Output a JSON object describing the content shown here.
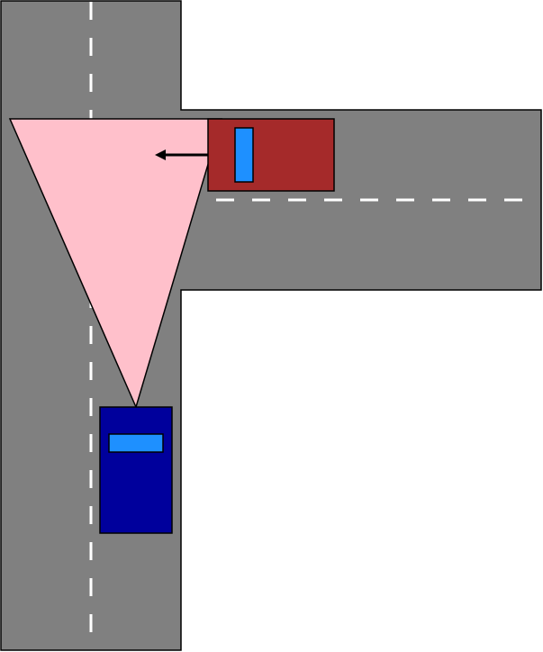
{
  "colors": {
    "background": "#ffffff",
    "road": "#808080",
    "road_border": "#000000",
    "lane_marking": "#ffffff",
    "vision_cone": "#ffc0cb",
    "red_car_body": "#a52a2a",
    "blue_car_body": "#00009c",
    "windshield": "#1e90ff",
    "arrow": "#000000"
  },
  "scene": {
    "roads": [
      "vertical-road",
      "side-road-right"
    ],
    "vehicles": [
      {
        "name": "red-car",
        "color": "red",
        "heading": "left",
        "moving": true
      },
      {
        "name": "blue-car",
        "color": "blue",
        "heading": "up",
        "moving": false
      }
    ],
    "field_of_view": {
      "from": "blue-car",
      "shape": "triangle"
    },
    "motion_arrow": {
      "vehicle": "red-car",
      "direction": "left"
    }
  }
}
